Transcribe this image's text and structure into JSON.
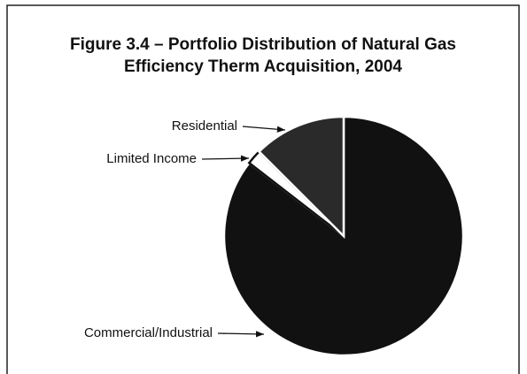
{
  "chart_data": {
    "type": "pie",
    "title": "Figure 3.4 – Portfolio Distribution of Natural Gas",
    "subtitle": "Efficiency Therm Acquisition, 2004",
    "categories": [
      "Commercial/Industrial",
      "Limited Income",
      "Residential"
    ],
    "values": [
      85.5,
      2,
      12.5
    ],
    "colors": [
      "#111111",
      "#ffffff",
      "#2a2a2a"
    ]
  }
}
